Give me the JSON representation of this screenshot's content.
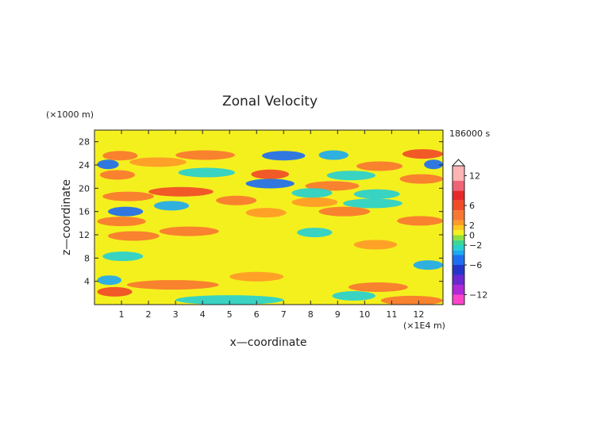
{
  "chart_data": {
    "type": "heatmap",
    "title": "Zonal Velocity",
    "xlabel": "x—coordinate",
    "ylabel": "z—coordinate",
    "x_unit": "(×1E4 m)",
    "y_unit": "(×1000 m)",
    "time_label": "186000 s",
    "xlim": [
      0,
      12.9
    ],
    "ylim": [
      0,
      30
    ],
    "x_ticks": [
      1,
      2,
      3,
      4,
      5,
      6,
      7,
      8,
      9,
      10,
      11,
      12
    ],
    "x_tick_labels": [
      "1",
      "2",
      "3",
      "4",
      "5",
      "6",
      "7",
      "8",
      "9",
      "10",
      "11",
      "12"
    ],
    "y_ticks": [
      4,
      8,
      12,
      16,
      20,
      24,
      28
    ],
    "y_tick_labels": [
      "4",
      "8",
      "12",
      "16",
      "20",
      "24",
      "28"
    ],
    "colorbar": {
      "range": [
        -14,
        14
      ],
      "tick_values": [
        12,
        6,
        2,
        0,
        -2,
        -6,
        -12
      ],
      "tick_labels": [
        "12",
        "6",
        "2",
        "0",
        "−2",
        "−6",
        "−12"
      ],
      "levels": [
        {
          "from": -14,
          "to": -12,
          "color": "#ff44cc"
        },
        {
          "from": -12,
          "to": -10,
          "color": "#b028d8"
        },
        {
          "from": -10,
          "to": -8,
          "color": "#6a28d0"
        },
        {
          "from": -8,
          "to": -6,
          "color": "#2436c8"
        },
        {
          "from": -6,
          "to": -4,
          "color": "#1e6ef0"
        },
        {
          "from": -4,
          "to": -3,
          "color": "#1eaaf0"
        },
        {
          "from": -3,
          "to": -2,
          "color": "#28d0d0"
        },
        {
          "from": -2,
          "to": -1,
          "color": "#3cd890"
        },
        {
          "from": -1,
          "to": 0,
          "color": "#8ce040"
        },
        {
          "from": 0,
          "to": 1,
          "color": "#f4f01e"
        },
        {
          "from": 1,
          "to": 2,
          "color": "#ffc81e"
        },
        {
          "from": 2,
          "to": 3,
          "color": "#ff9a28"
        },
        {
          "from": 3,
          "to": 5,
          "color": "#f87830"
        },
        {
          "from": 5,
          "to": 7,
          "color": "#f04c28"
        },
        {
          "from": 7,
          "to": 9,
          "color": "#e82828"
        },
        {
          "from": 9,
          "to": 11,
          "color": "#f06478"
        },
        {
          "from": 11,
          "to": 14,
          "color": "#ffb4b4"
        }
      ]
    },
    "bands": [
      {
        "z": 25.6,
        "x0": 0.3,
        "x1": 1.6,
        "v": 4.2
      },
      {
        "z": 25.7,
        "x0": 3.0,
        "x1": 5.2,
        "v": 3.2
      },
      {
        "z": 25.9,
        "x0": 11.4,
        "x1": 12.9,
        "v": 5.5
      },
      {
        "z": 25.6,
        "x0": 6.2,
        "x1": 7.8,
        "v": -5.5
      },
      {
        "z": 25.7,
        "x0": 8.3,
        "x1": 9.4,
        "v": -3.5
      },
      {
        "z": 24.1,
        "x0": 0.1,
        "x1": 0.9,
        "v": -5.5
      },
      {
        "z": 24.1,
        "x0": 12.2,
        "x1": 12.9,
        "v": -5.5
      },
      {
        "z": 23.8,
        "x0": 9.7,
        "x1": 11.4,
        "v": 3.8
      },
      {
        "z": 24.5,
        "x0": 1.3,
        "x1": 3.4,
        "v": 2.5
      },
      {
        "z": 22.4,
        "x0": 5.8,
        "x1": 7.2,
        "v": 5.0
      },
      {
        "z": 22.7,
        "x0": 3.1,
        "x1": 5.2,
        "v": -2.6
      },
      {
        "z": 22.3,
        "x0": 0.2,
        "x1": 1.5,
        "v": 3.0
      },
      {
        "z": 22.2,
        "x0": 8.6,
        "x1": 10.4,
        "v": -2.4
      },
      {
        "z": 21.6,
        "x0": 11.3,
        "x1": 12.9,
        "v": 3.0
      },
      {
        "z": 20.8,
        "x0": 5.6,
        "x1": 7.4,
        "v": -4.5
      },
      {
        "z": 20.4,
        "x0": 7.8,
        "x1": 9.8,
        "v": 3.4
      },
      {
        "z": 19.4,
        "x0": 2.0,
        "x1": 4.4,
        "v": 5.0
      },
      {
        "z": 19.2,
        "x0": 7.3,
        "x1": 8.8,
        "v": -3.0
      },
      {
        "z": 19.0,
        "x0": 9.6,
        "x1": 11.3,
        "v": -2.6
      },
      {
        "z": 18.6,
        "x0": 0.3,
        "x1": 2.2,
        "v": 4.0
      },
      {
        "z": 17.9,
        "x0": 4.5,
        "x1": 6.0,
        "v": 3.2
      },
      {
        "z": 17.6,
        "x0": 7.3,
        "x1": 9.0,
        "v": 2.8
      },
      {
        "z": 17.4,
        "x0": 9.2,
        "x1": 11.4,
        "v": -2.5
      },
      {
        "z": 17.0,
        "x0": 2.2,
        "x1": 3.5,
        "v": -3.2
      },
      {
        "z": 16.0,
        "x0": 0.5,
        "x1": 1.8,
        "v": -4.8
      },
      {
        "z": 16.0,
        "x0": 8.3,
        "x1": 10.2,
        "v": 4.2
      },
      {
        "z": 15.8,
        "x0": 5.6,
        "x1": 7.1,
        "v": 2.8
      },
      {
        "z": 14.3,
        "x0": 0.1,
        "x1": 1.9,
        "v": 4.6
      },
      {
        "z": 14.4,
        "x0": 11.2,
        "x1": 12.9,
        "v": 3.0
      },
      {
        "z": 12.6,
        "x0": 2.4,
        "x1": 4.6,
        "v": 3.8
      },
      {
        "z": 11.8,
        "x0": 0.5,
        "x1": 2.4,
        "v": 3.0
      },
      {
        "z": 12.4,
        "x0": 7.5,
        "x1": 8.8,
        "v": -2.6
      },
      {
        "z": 10.3,
        "x0": 9.6,
        "x1": 11.2,
        "v": 2.6
      },
      {
        "z": 8.3,
        "x0": 0.3,
        "x1": 1.8,
        "v": -3.0
      },
      {
        "z": 6.8,
        "x0": 11.8,
        "x1": 12.9,
        "v": -3.2
      },
      {
        "z": 4.8,
        "x0": 5.0,
        "x1": 7.0,
        "v": 2.6
      },
      {
        "z": 4.2,
        "x0": 0.1,
        "x1": 1.0,
        "v": -4.0
      },
      {
        "z": 3.4,
        "x0": 1.2,
        "x1": 4.6,
        "v": 4.2
      },
      {
        "z": 2.2,
        "x0": 0.1,
        "x1": 1.4,
        "v": 5.0
      },
      {
        "z": 3.0,
        "x0": 9.4,
        "x1": 11.6,
        "v": 3.0
      },
      {
        "z": 1.5,
        "x0": 8.8,
        "x1": 10.4,
        "v": -2.8
      },
      {
        "z": 0.8,
        "x0": 3.0,
        "x1": 7.0,
        "v": -2.2
      },
      {
        "z": 0.7,
        "x0": 10.6,
        "x1": 12.9,
        "v": 4.0
      }
    ]
  }
}
